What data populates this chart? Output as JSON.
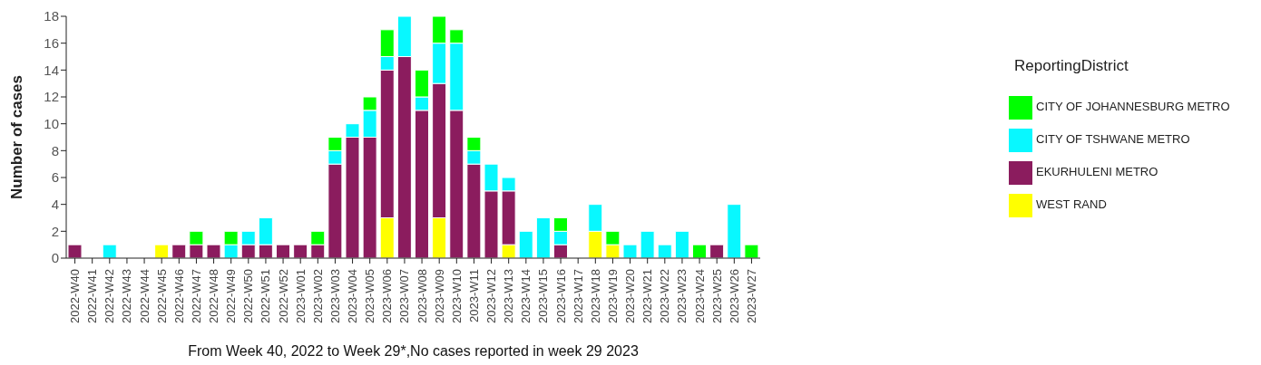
{
  "chart_data": {
    "type": "bar",
    "stacked": true,
    "xlabel": "From Week 40, 2022 to Week 29*,No cases reported in week 29 2023",
    "ylabel": "Number of cases",
    "legend_title": "ReportingDistrict",
    "legend": "right",
    "grid": false,
    "categories": [
      "2022-W40",
      "2022-W41",
      "2022-W42",
      "2022-W43",
      "2022-W44",
      "2022-W45",
      "2022-W46",
      "2022-W47",
      "2022-W48",
      "2022-W49",
      "2022-W50",
      "2022-W51",
      "2022-W52",
      "2023-W01",
      "2023-W02",
      "2023-W03",
      "2023-W04",
      "2023-W05",
      "2023-W06",
      "2023-W07",
      "2023-W08",
      "2023-W09",
      "2023-W10",
      "2023-W11",
      "2023-W12",
      "2023-W13",
      "2023-W14",
      "2023-W15",
      "2023-W16",
      "2023-W17",
      "2023-W18",
      "2023-W19",
      "2023-W20",
      "2023-W21",
      "2023-W22",
      "2023-W23",
      "2023-W24",
      "2023-W25",
      "2023-W26",
      "2023-W27"
    ],
    "ylim": [
      0,
      18
    ],
    "yticks": [
      0,
      2,
      4,
      6,
      8,
      10,
      12,
      14,
      16,
      18
    ],
    "series": [
      {
        "name": "WEST RAND",
        "color": "#ffff00",
        "values": [
          null,
          null,
          null,
          null,
          null,
          1,
          null,
          null,
          null,
          null,
          null,
          null,
          null,
          null,
          null,
          null,
          null,
          null,
          3,
          null,
          null,
          3,
          null,
          null,
          null,
          1,
          null,
          null,
          null,
          null,
          2,
          1,
          null,
          null,
          null,
          null,
          null,
          null,
          null,
          null
        ]
      },
      {
        "name": "EKURHULENI METRO",
        "color": "#8b1c5e",
        "values": [
          1,
          null,
          null,
          null,
          null,
          null,
          1,
          1,
          1,
          null,
          1,
          1,
          1,
          1,
          1,
          7,
          9,
          9,
          11,
          15,
          11,
          10,
          11,
          7,
          5,
          4,
          null,
          null,
          1,
          null,
          null,
          null,
          null,
          null,
          null,
          null,
          null,
          1,
          null,
          null
        ]
      },
      {
        "name": "CITY OF TSHWANE METRO",
        "color": "#08f8ff",
        "values": [
          null,
          null,
          1,
          null,
          null,
          null,
          null,
          null,
          null,
          1,
          1,
          2,
          null,
          null,
          null,
          1,
          1,
          2,
          1,
          3,
          1,
          3,
          5,
          1,
          2,
          1,
          2,
          3,
          1,
          null,
          2,
          null,
          1,
          2,
          1,
          2,
          null,
          null,
          4,
          null
        ]
      },
      {
        "name": "CITY OF JOHANNESBURG METRO",
        "color": "#00ff00",
        "values": [
          null,
          null,
          null,
          null,
          null,
          null,
          null,
          1,
          null,
          1,
          null,
          null,
          null,
          null,
          1,
          1,
          null,
          1,
          2,
          null,
          2,
          2,
          1,
          1,
          null,
          null,
          null,
          null,
          1,
          null,
          null,
          1,
          null,
          null,
          null,
          null,
          1,
          null,
          null,
          1
        ]
      }
    ]
  }
}
